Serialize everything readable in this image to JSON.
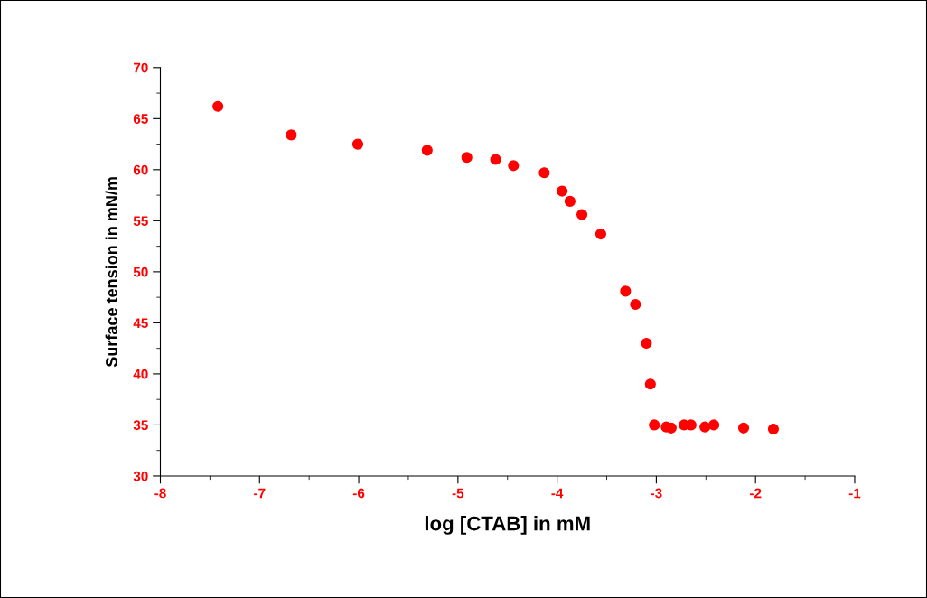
{
  "chart_data": {
    "type": "scatter",
    "xlabel": "log [CTAB] in mM",
    "ylabel": "Surface tension in mN/m",
    "xlim": [
      -8,
      -1
    ],
    "xticks": [
      -8,
      -7,
      -6,
      -5,
      -4,
      -3,
      -2,
      -1
    ],
    "ylim": [
      30,
      70
    ],
    "yticks": [
      30,
      35,
      40,
      45,
      50,
      55,
      60,
      65,
      70
    ],
    "grid": false,
    "legend": false,
    "marker": "circle",
    "series": [
      {
        "color": "#ff0000",
        "x": [
          -7.42,
          -6.68,
          -6.01,
          -5.31,
          -4.91,
          -4.62,
          -4.44,
          -4.13,
          -3.95,
          -3.87,
          -3.75,
          -3.56,
          -3.31,
          -3.21,
          -3.1,
          -3.06,
          -3.02,
          -2.9,
          -2.85,
          -2.72,
          -2.65,
          -2.51,
          -2.42,
          -2.12,
          -1.82
        ],
        "values": [
          66.2,
          63.4,
          62.5,
          61.9,
          61.2,
          61.0,
          60.4,
          59.7,
          57.9,
          56.9,
          55.6,
          53.7,
          48.1,
          46.8,
          43.0,
          39.0,
          35.0,
          34.8,
          34.7,
          35.0,
          35.0,
          34.8,
          35.0,
          34.7,
          34.6
        ]
      }
    ]
  }
}
